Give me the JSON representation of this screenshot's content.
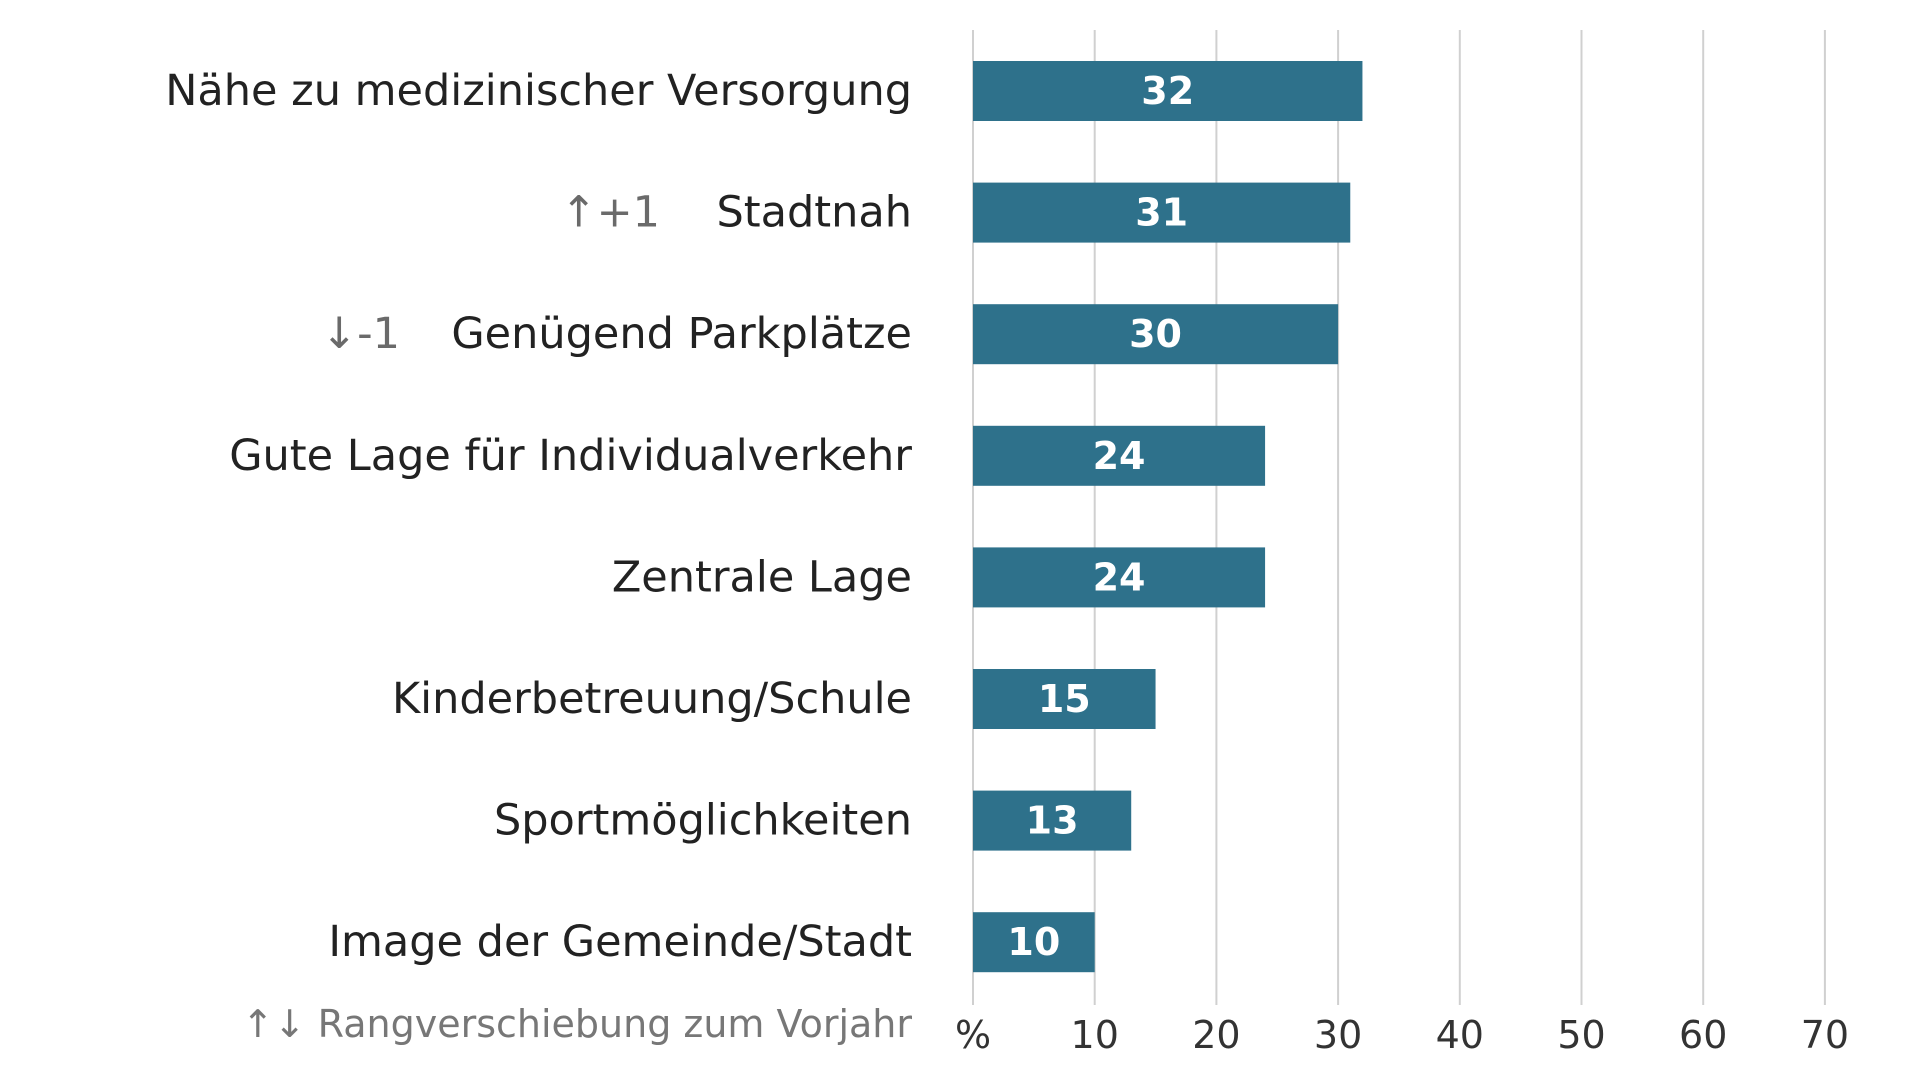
{
  "chart_data": {
    "type": "bar",
    "orientation": "horizontal",
    "categories": [
      "Nähe zu medizinischer Versorgung",
      "Stadtnah",
      "Genügend Parkplätze",
      "Gute Lage für Individualverkehr",
      "Zentrale Lage",
      "Kinderbetreuung/Schule",
      "Sportmöglichkeiten",
      "Image der Gemeinde/Stadt"
    ],
    "values": [
      32,
      31,
      30,
      24,
      24,
      15,
      13,
      10
    ],
    "value_labels": [
      "32",
      "31",
      "30",
      "24",
      "24",
      "15",
      "13",
      "10"
    ],
    "rank_changes": [
      "",
      "↑+1",
      "↓-1",
      "",
      "",
      "",
      "",
      ""
    ],
    "xlim": [
      0,
      70
    ],
    "x_ticks": [
      0,
      10,
      20,
      30,
      40,
      50,
      60,
      70
    ],
    "x_tick_labels": [
      "%",
      "10",
      "20",
      "30",
      "40",
      "50",
      "60",
      "70"
    ],
    "footnote": "↑↓ Rangverschiebung zum Vorjahr",
    "grid": true,
    "bar_color": "#2e718b",
    "title": "",
    "xlabel": "",
    "ylabel": ""
  }
}
